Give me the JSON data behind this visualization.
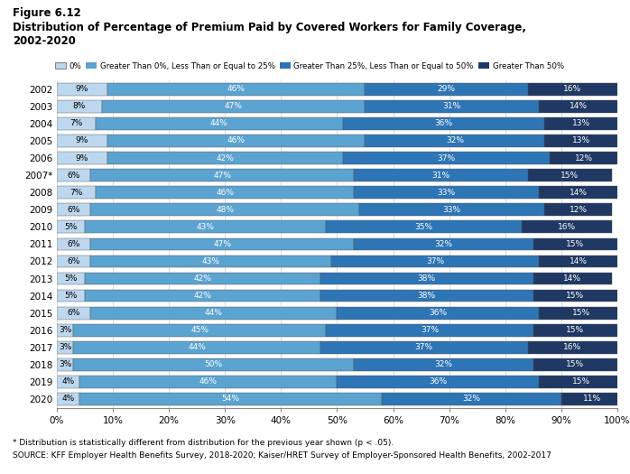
{
  "years": [
    "2002",
    "2003",
    "2004",
    "2005",
    "2006",
    "2007*",
    "2008",
    "2009",
    "2010",
    "2011",
    "2012",
    "2013",
    "2014",
    "2015",
    "2016",
    "2017",
    "2018",
    "2019",
    "2020"
  ],
  "cat1": [
    9,
    8,
    7,
    9,
    9,
    6,
    7,
    6,
    5,
    6,
    6,
    5,
    5,
    6,
    3,
    3,
    3,
    4,
    4
  ],
  "cat2": [
    46,
    47,
    44,
    46,
    42,
    47,
    46,
    48,
    43,
    47,
    43,
    42,
    42,
    44,
    45,
    44,
    50,
    46,
    54
  ],
  "cat3": [
    29,
    31,
    36,
    32,
    37,
    31,
    33,
    33,
    35,
    32,
    37,
    38,
    38,
    36,
    37,
    37,
    32,
    36,
    32
  ],
  "cat4": [
    16,
    14,
    13,
    13,
    12,
    15,
    14,
    12,
    16,
    15,
    14,
    14,
    15,
    15,
    15,
    16,
    15,
    15,
    11
  ],
  "colors": [
    "#bdd7ee",
    "#5ba3d0",
    "#2e75b6",
    "#1f3864"
  ],
  "legend_labels": [
    "0%",
    "Greater Than 0%, Less Than or Equal to 25%",
    "Greater Than 25%, Less Than or Equal to 50%",
    "Greater Than 50%"
  ],
  "figure_label": "Figure 6.12",
  "title_line1": "Distribution of Percentage of Premium Paid by Covered Workers for Family Coverage,",
  "title_line2": "2002-2020",
  "footnote1": "* Distribution is statistically different from distribution for the previous year shown (p < .05).",
  "footnote2": "SOURCE: KFF Employer Health Benefits Survey, 2018-2020; Kaiser/HRET Survey of Employer-Sponsored Health Benefits, 2002-2017",
  "xlabel_ticks": [
    0,
    10,
    20,
    30,
    40,
    50,
    60,
    70,
    80,
    90,
    100
  ],
  "xlabel_labels": [
    "0%",
    "10%",
    "20%",
    "30%",
    "40%",
    "50%",
    "60%",
    "70%",
    "80%",
    "90%",
    "100%"
  ]
}
